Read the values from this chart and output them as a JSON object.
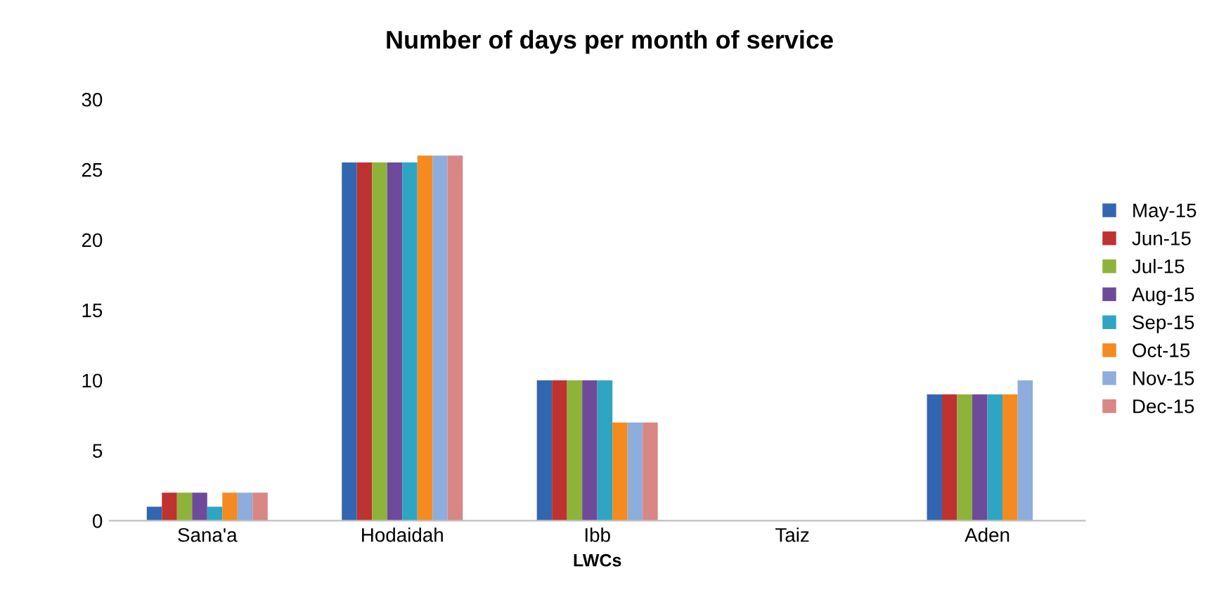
{
  "chart_data": {
    "type": "bar",
    "title": "Number of days per month of service",
    "xlabel": "LWCs",
    "categories": [
      "Sana'a",
      "Hodaidah",
      "Ibb",
      "Taiz",
      "Aden"
    ],
    "series": [
      {
        "name": "May-15",
        "color": "#3366b0",
        "values": [
          1,
          25.5,
          10,
          null,
          9
        ]
      },
      {
        "name": "Jun-15",
        "color": "#be3230",
        "values": [
          2,
          25.5,
          10,
          null,
          9
        ]
      },
      {
        "name": "Jul-15",
        "color": "#8db33a",
        "values": [
          2,
          25.5,
          10,
          null,
          9
        ]
      },
      {
        "name": "Aug-15",
        "color": "#6e4a9a",
        "values": [
          2,
          25.5,
          10,
          null,
          9
        ]
      },
      {
        "name": "Sep-15",
        "color": "#2ea5c3",
        "values": [
          1,
          25.5,
          10,
          null,
          9
        ]
      },
      {
        "name": "Oct-15",
        "color": "#f58a1f",
        "values": [
          2,
          26,
          7,
          null,
          9
        ]
      },
      {
        "name": "Nov-15",
        "color": "#8eacdc",
        "values": [
          2,
          26,
          7,
          null,
          10
        ]
      },
      {
        "name": "Dec-15",
        "color": "#d88785",
        "values": [
          2,
          26,
          7,
          null,
          null
        ]
      }
    ],
    "ylim": [
      0,
      30
    ],
    "yticks": [
      0,
      5,
      10,
      15,
      20,
      25,
      30
    ],
    "grid": false,
    "legend": "right"
  }
}
